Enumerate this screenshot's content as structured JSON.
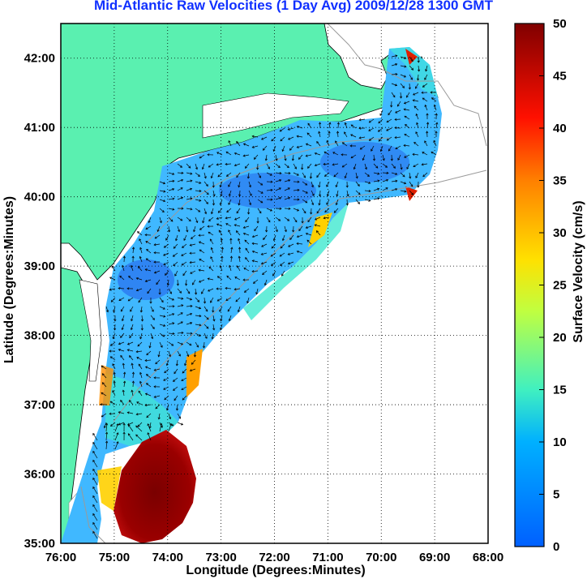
{
  "title": "Mid-Atlantic Raw Velocities (1 Day Avg) 2009/12/28 1300 GMT",
  "map": {
    "xlabel": "Longitude (Degrees:Minutes)",
    "ylabel": "Latitude (Degrees:Minutes)",
    "x_ticks": [
      "76:00",
      "75:00",
      "74:00",
      "73:00",
      "72:00",
      "71:00",
      "70:00",
      "69:00",
      "68:00"
    ],
    "y_ticks": [
      "42:00",
      "41:00",
      "40:00",
      "39:00",
      "38:00",
      "37:00",
      "36:00",
      "35:00"
    ],
    "lon_range": [
      -76,
      -68
    ],
    "lat_range": [
      35,
      42.5
    ],
    "land_color": "#5af0b0",
    "grid": "dotted"
  },
  "colorbar": {
    "label": "Surface Velocity (cm/s)",
    "ticks": [
      "50",
      "45",
      "40",
      "35",
      "30",
      "25",
      "20",
      "15",
      "10",
      "5",
      "0"
    ],
    "range": [
      0,
      50
    ]
  }
}
